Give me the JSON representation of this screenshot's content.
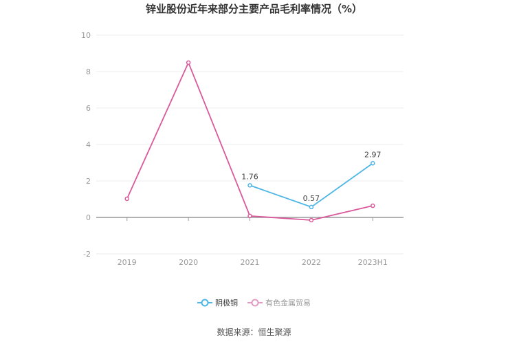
{
  "title": "锌业股份近年来部分主要产品毛利率情况（%）",
  "source": "数据来源：恒生聚源",
  "chart_data": {
    "type": "line",
    "title": "锌业股份近年来部分主要产品毛利率情况（%）",
    "xlabel": "",
    "ylabel": "",
    "categories": [
      "2019",
      "2020",
      "2021",
      "2022",
      "2023H1"
    ],
    "y_ticks": [
      "10",
      "8",
      "6",
      "4",
      "2",
      "0",
      "-2"
    ],
    "ylim": [
      -2,
      10
    ],
    "grid": true,
    "legend_position": "bottom",
    "series": [
      {
        "name": "阴极铜",
        "color": "#4DB6E6",
        "values": [
          null,
          null,
          1.76,
          0.57,
          2.97
        ],
        "labels": [
          "",
          "",
          "1.76",
          "0.57",
          "2.97"
        ]
      },
      {
        "name": "有色金属贸易",
        "color": "#D9599B",
        "values": [
          1.02,
          8.49,
          0.08,
          -0.15,
          0.64
        ]
      }
    ]
  },
  "legend": [
    {
      "label": "阴极铜",
      "color": "#4DB6E6"
    },
    {
      "label": "有色金属贸易",
      "color": "#E59AC3"
    }
  ]
}
